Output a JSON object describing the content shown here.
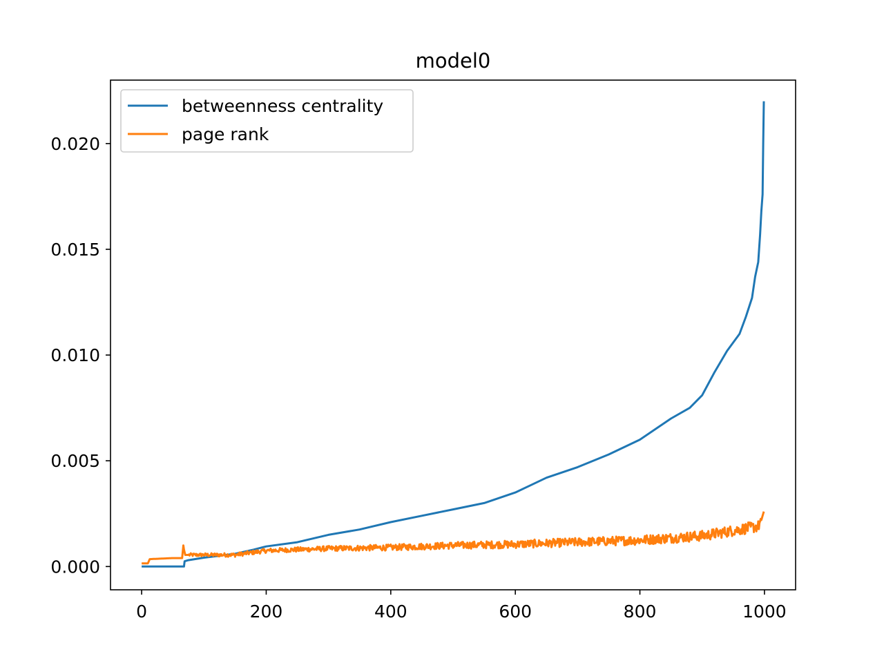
{
  "chart_data": {
    "type": "line",
    "title": "model0",
    "xlabel": "",
    "ylabel": "",
    "xlim": [
      -50,
      1050
    ],
    "ylim": [
      -0.0011,
      0.023
    ],
    "xticks": [
      0,
      200,
      400,
      600,
      800,
      1000
    ],
    "xtick_labels": [
      "0",
      "200",
      "400",
      "600",
      "800",
      "1000"
    ],
    "yticks": [
      0.0,
      0.005,
      0.01,
      0.015,
      0.02
    ],
    "ytick_labels": [
      "0.000",
      "0.005",
      "0.010",
      "0.015",
      "0.020"
    ],
    "grid": false,
    "legend": "upper left",
    "series": [
      {
        "name": "betweenness centrality",
        "color": "#1f77b4",
        "x": [
          0,
          68,
          69,
          75,
          100,
          150,
          180,
          200,
          250,
          300,
          350,
          400,
          450,
          500,
          550,
          600,
          650,
          700,
          750,
          800,
          850,
          880,
          900,
          920,
          940,
          960,
          970,
          980,
          985,
          990,
          993,
          995,
          997,
          998,
          999
        ],
        "y": [
          0.0,
          0.0,
          0.00025,
          0.0003,
          0.00042,
          0.0006,
          0.0008,
          0.00095,
          0.00115,
          0.0015,
          0.00175,
          0.0021,
          0.0024,
          0.0027,
          0.003,
          0.0035,
          0.0042,
          0.0047,
          0.0053,
          0.006,
          0.007,
          0.0075,
          0.0081,
          0.0092,
          0.0102,
          0.011,
          0.0118,
          0.0127,
          0.0137,
          0.0144,
          0.0157,
          0.0168,
          0.0176,
          0.02,
          0.022
        ]
      },
      {
        "name": "page rank",
        "color": "#ff7f0e",
        "x": [
          0,
          10,
          13,
          50,
          65,
          67,
          68,
          70,
          80,
          100,
          150,
          200,
          300,
          400,
          500,
          600,
          700,
          800,
          850,
          900,
          950,
          990,
          995,
          999
        ],
        "y": [
          0.00015,
          0.00015,
          0.00035,
          0.0004,
          0.0004,
          0.001,
          0.0008,
          0.00055,
          0.00055,
          0.00055,
          0.00055,
          0.00075,
          0.00085,
          0.0009,
          0.001,
          0.00105,
          0.00115,
          0.00125,
          0.00135,
          0.00145,
          0.0017,
          0.0019,
          0.0022,
          0.0026
        ],
        "noise": 0.00015
      }
    ]
  }
}
